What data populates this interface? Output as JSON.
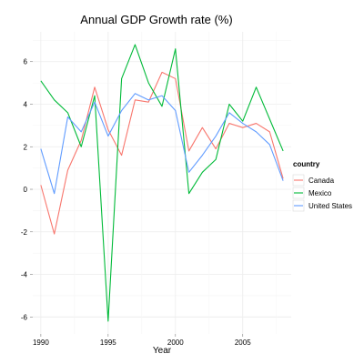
{
  "chart_data": {
    "type": "line",
    "title": "Annual GDP Growth rate (%)",
    "xlabel": "Year",
    "ylabel": "",
    "xlim": [
      1989.4,
      2008.6
    ],
    "ylim": [
      -6.8,
      7.4
    ],
    "xticks": [
      1990,
      1995,
      2000,
      2005
    ],
    "yticks": [
      -6,
      -4,
      -2,
      0,
      2,
      4,
      6
    ],
    "grid": true,
    "legend": {
      "title": "country",
      "position": "right"
    },
    "x": [
      1990,
      1991,
      1992,
      1993,
      1994,
      1995,
      1996,
      1997,
      1998,
      1999,
      2000,
      2001,
      2002,
      2003,
      2004,
      2005,
      2006,
      2007,
      2008
    ],
    "series": [
      {
        "name": "Canada",
        "color": "#F8766D",
        "values": [
          0.2,
          -2.1,
          0.9,
          2.3,
          4.8,
          2.8,
          1.6,
          4.2,
          4.1,
          5.5,
          5.2,
          1.8,
          2.9,
          1.9,
          3.1,
          2.9,
          3.1,
          2.7,
          0.5
        ]
      },
      {
        "name": "Mexico",
        "color": "#00BA38",
        "values": [
          5.1,
          4.2,
          3.6,
          2.0,
          4.4,
          -6.2,
          5.2,
          6.8,
          5.0,
          3.9,
          6.6,
          -0.2,
          0.8,
          1.4,
          4.0,
          3.2,
          4.8,
          3.3,
          1.8
        ]
      },
      {
        "name": "United States",
        "color": "#619CFF",
        "values": [
          1.9,
          -0.2,
          3.4,
          2.7,
          4.1,
          2.5,
          3.7,
          4.5,
          4.2,
          4.4,
          3.7,
          0.8,
          1.6,
          2.5,
          3.6,
          3.1,
          2.7,
          2.1,
          0.4
        ]
      }
    ]
  }
}
